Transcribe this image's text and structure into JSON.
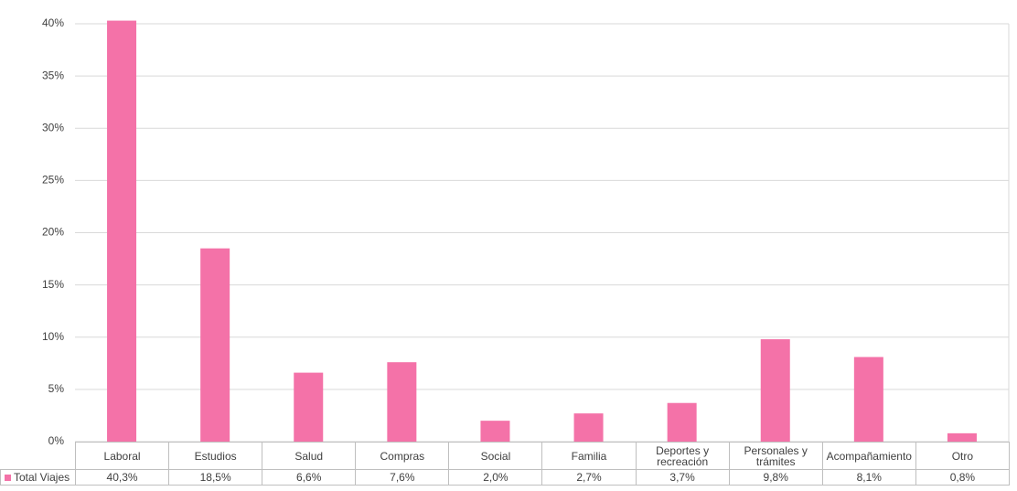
{
  "chart_data": {
    "type": "bar",
    "categories": [
      "Laboral",
      "Estudios",
      "Salud",
      "Compras",
      "Social",
      "Familia",
      "Deportes y recreación",
      "Personales y trámites",
      "Acompañamiento",
      "Otro"
    ],
    "series": [
      {
        "name": "Total Viajes",
        "color": "#f472a8",
        "values": [
          40.3,
          18.5,
          6.6,
          7.6,
          2.0,
          2.7,
          3.7,
          9.8,
          8.1,
          0.8
        ],
        "value_labels": [
          "40,3%",
          "18,5%",
          "6,6%",
          "7,6%",
          "2,0%",
          "2,7%",
          "3,7%",
          "9,8%",
          "8,1%",
          "0,8%"
        ]
      }
    ],
    "ylim": [
      0,
      40
    ],
    "yticks": [
      {
        "value": 0,
        "label": "0%"
      },
      {
        "value": 5,
        "label": "5%"
      },
      {
        "value": 10,
        "label": "10%"
      },
      {
        "value": 15,
        "label": "15%"
      },
      {
        "value": 20,
        "label": "20%"
      },
      {
        "value": 25,
        "label": "25%"
      },
      {
        "value": 30,
        "label": "30%"
      },
      {
        "value": 35,
        "label": "35%"
      },
      {
        "value": 40,
        "label": "40%"
      }
    ],
    "grid": true
  }
}
